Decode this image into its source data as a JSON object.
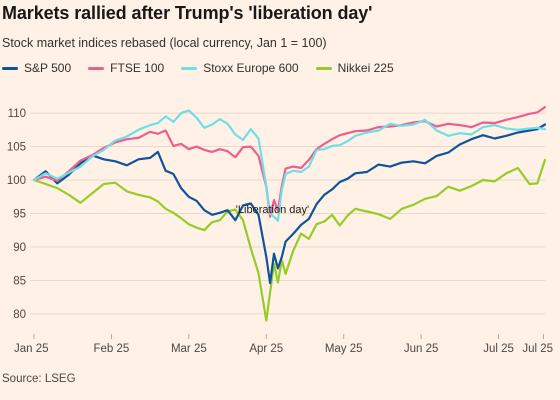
{
  "header": {
    "title": "Markets rallied after Trump's 'liberation day'",
    "subtitle": "Stock market indices rebased (local currency, Jan 1 = 100)"
  },
  "footer": {
    "source": "Source: LSEG"
  },
  "colors": {
    "background": "#fff1e5",
    "grid": "#e6d9ce",
    "sp500": "#0f5499",
    "ftse100": "#eb5e8d",
    "stoxx600": "#70dee6",
    "nikkei225": "#96cc28"
  },
  "chart_data": {
    "type": "line",
    "title": "Markets rallied after Trump's 'liberation day'",
    "subtitle": "Stock market indices rebased (local currency, Jan 1 = 100)",
    "xlabel": "",
    "ylabel": "",
    "x_range": [
      0,
      6.6
    ],
    "ylim": [
      77,
      113
    ],
    "yticks": [
      80,
      85,
      90,
      95,
      100,
      105,
      110
    ],
    "xticks": [
      {
        "label": "Jan 25",
        "x": 0
      },
      {
        "label": "Feb 25",
        "x": 1
      },
      {
        "label": "Mar 25",
        "x": 2
      },
      {
        "label": "Apr 25",
        "x": 3
      },
      {
        "label": "May 25",
        "x": 4
      },
      {
        "label": "Jun 25",
        "x": 5
      },
      {
        "label": "Jul 25",
        "x": 6
      },
      {
        "label": "Jul 25",
        "x": 6.58
      }
    ],
    "grid": true,
    "legend_position": "top",
    "annotation": {
      "text": "'Liberation day'",
      "x": 3.08,
      "y": 95.7
    },
    "series": [
      {
        "name": "S&P 500",
        "key": "sp500",
        "x": [
          0,
          0.15,
          0.3,
          0.45,
          0.6,
          0.75,
          0.9,
          1.05,
          1.2,
          1.35,
          1.5,
          1.6,
          1.7,
          1.8,
          1.9,
          2.0,
          2.1,
          2.2,
          2.3,
          2.4,
          2.5,
          2.6,
          2.7,
          2.8,
          2.9,
          3.0,
          3.05,
          3.1,
          3.15,
          3.2,
          3.25,
          3.35,
          3.45,
          3.55,
          3.65,
          3.75,
          3.85,
          3.95,
          4.05,
          4.15,
          4.3,
          4.45,
          4.6,
          4.75,
          4.9,
          5.05,
          5.2,
          5.35,
          5.5,
          5.65,
          5.8,
          5.95,
          6.1,
          6.25,
          6.4,
          6.5,
          6.6
        ],
        "y": [
          100,
          101.3,
          99.5,
          100.8,
          102.5,
          103.7,
          103.1,
          102.8,
          102.2,
          103.1,
          103.3,
          104.2,
          101.4,
          100.9,
          98.8,
          97.5,
          96.9,
          95.5,
          94.8,
          95.1,
          95.5,
          94.0,
          96.2,
          96.5,
          94.8,
          88.5,
          84.6,
          89.0,
          86.8,
          88.5,
          90.8,
          92.0,
          93.3,
          94.2,
          96.4,
          97.8,
          98.6,
          99.7,
          100.2,
          101.0,
          101.2,
          102.3,
          102.0,
          102.6,
          102.8,
          102.5,
          103.6,
          104.1,
          105.3,
          106.1,
          106.7,
          106.2,
          106.6,
          107.1,
          107.4,
          107.6,
          108.3
        ]
      },
      {
        "name": "FTSE 100",
        "key": "ftse100",
        "x": [
          0,
          0.15,
          0.3,
          0.45,
          0.6,
          0.75,
          0.9,
          1.05,
          1.2,
          1.35,
          1.5,
          1.6,
          1.7,
          1.8,
          1.9,
          2.0,
          2.1,
          2.2,
          2.3,
          2.4,
          2.5,
          2.6,
          2.7,
          2.8,
          2.9,
          3.0,
          3.05,
          3.1,
          3.15,
          3.2,
          3.25,
          3.35,
          3.45,
          3.55,
          3.65,
          3.75,
          3.85,
          3.95,
          4.05,
          4.15,
          4.3,
          4.45,
          4.6,
          4.75,
          4.9,
          5.05,
          5.2,
          5.35,
          5.5,
          5.65,
          5.8,
          5.95,
          6.1,
          6.25,
          6.4,
          6.5,
          6.6
        ],
        "y": [
          100,
          100.5,
          99.9,
          101.3,
          102.9,
          103.7,
          104.8,
          105.6,
          106.1,
          106.3,
          107.2,
          106.9,
          107.4,
          105.1,
          105.4,
          104.6,
          105.0,
          104.5,
          104.2,
          104.6,
          104.3,
          103.4,
          104.9,
          105.0,
          103.6,
          99.0,
          94.5,
          97.0,
          95.4,
          99.1,
          101.7,
          102.0,
          101.8,
          103.0,
          104.6,
          105.4,
          106.1,
          106.7,
          107.0,
          107.3,
          107.4,
          107.9,
          108.0,
          108.2,
          108.6,
          108.8,
          108.0,
          108.4,
          108.2,
          107.9,
          108.6,
          108.5,
          109.0,
          109.4,
          109.9,
          110.1,
          110.9
        ]
      },
      {
        "name": "Stoxx Europe 600",
        "key": "stoxx600",
        "x": [
          0,
          0.15,
          0.3,
          0.45,
          0.6,
          0.75,
          0.9,
          1.05,
          1.2,
          1.35,
          1.5,
          1.6,
          1.7,
          1.8,
          1.9,
          2.0,
          2.1,
          2.2,
          2.3,
          2.4,
          2.5,
          2.6,
          2.7,
          2.8,
          2.9,
          3.0,
          3.05,
          3.1,
          3.15,
          3.2,
          3.25,
          3.35,
          3.45,
          3.55,
          3.65,
          3.75,
          3.85,
          3.95,
          4.05,
          4.15,
          4.3,
          4.45,
          4.6,
          4.75,
          4.9,
          5.05,
          5.2,
          5.35,
          5.5,
          5.65,
          5.8,
          5.95,
          6.1,
          6.25,
          6.4,
          6.5,
          6.6
        ],
        "y": [
          100,
          101.0,
          100.2,
          101.1,
          102.0,
          103.5,
          104.5,
          105.9,
          106.5,
          107.5,
          108.2,
          108.5,
          109.5,
          108.7,
          110.0,
          110.4,
          109.3,
          107.8,
          108.3,
          109.1,
          108.4,
          106.8,
          106.0,
          107.6,
          106.2,
          99.0,
          95.0,
          94.5,
          93.9,
          98.5,
          100.9,
          101.4,
          101.2,
          102.0,
          104.5,
          104.6,
          105.1,
          105.2,
          105.8,
          106.6,
          107.1,
          107.4,
          108.4,
          108.1,
          108.3,
          109.0,
          107.4,
          106.6,
          107.0,
          106.8,
          107.9,
          108.2,
          107.7,
          107.5,
          107.7,
          107.8,
          107.6
        ]
      },
      {
        "name": "Nikkei 225",
        "key": "nikkei225",
        "x": [
          0,
          0.15,
          0.3,
          0.45,
          0.6,
          0.75,
          0.9,
          1.05,
          1.2,
          1.35,
          1.5,
          1.6,
          1.7,
          1.8,
          1.9,
          2.0,
          2.1,
          2.2,
          2.3,
          2.4,
          2.5,
          2.6,
          2.7,
          2.8,
          2.9,
          3.0,
          3.05,
          3.1,
          3.15,
          3.2,
          3.25,
          3.35,
          3.45,
          3.55,
          3.65,
          3.75,
          3.85,
          3.95,
          4.05,
          4.15,
          4.3,
          4.45,
          4.6,
          4.75,
          4.9,
          5.05,
          5.2,
          5.35,
          5.5,
          5.65,
          5.8,
          5.95,
          6.1,
          6.25,
          6.4,
          6.5,
          6.6
        ],
        "y": [
          100,
          99.4,
          98.8,
          97.8,
          96.6,
          98.0,
          99.4,
          99.6,
          98.3,
          97.8,
          97.4,
          96.8,
          95.7,
          95.1,
          94.3,
          93.4,
          92.9,
          92.5,
          93.7,
          94.0,
          95.3,
          95.6,
          94.0,
          89.8,
          86.1,
          79.0,
          83.2,
          87.5,
          84.7,
          88.0,
          86.0,
          89.5,
          92.0,
          91.2,
          93.4,
          93.8,
          94.8,
          93.2,
          94.7,
          95.7,
          95.3,
          94.9,
          94.2,
          95.7,
          96.3,
          97.2,
          97.6,
          99.0,
          98.4,
          99.1,
          100.0,
          99.8,
          101.0,
          101.8,
          99.4,
          99.5,
          103.0
        ]
      }
    ]
  }
}
